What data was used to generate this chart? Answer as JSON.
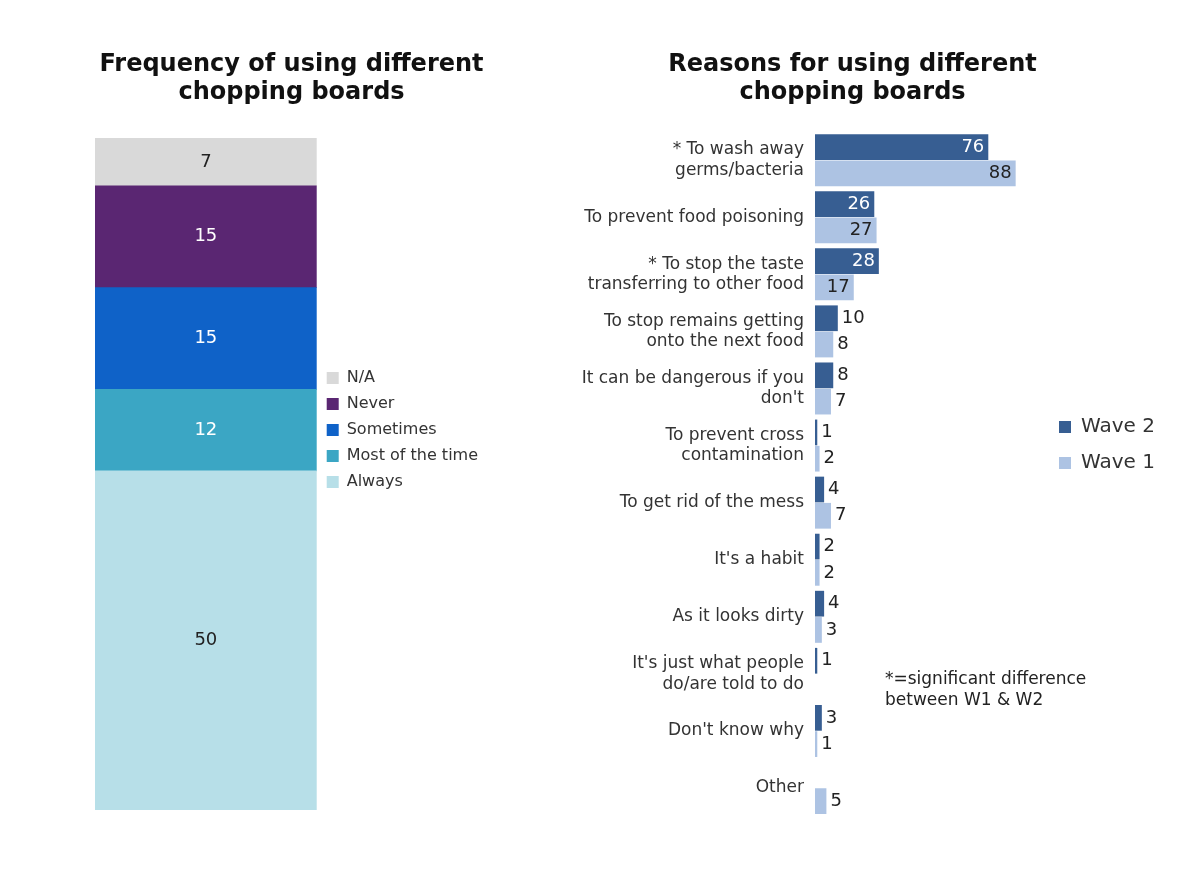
{
  "chart_data": [
    {
      "type": "bar",
      "title": "Frequency of using different chopping boards",
      "categories": [
        null
      ],
      "stacked": true,
      "data_labels": true,
      "tick_labels": false,
      "legend": "right",
      "series": [
        {
          "name": "Always",
          "color": "#b7dfe8",
          "values": [
            50
          ]
        },
        {
          "name": "Most of the time",
          "color": "#3ba6c4",
          "values": [
            12
          ]
        },
        {
          "name": "Sometimes",
          "color": "#0f62c8",
          "values": [
            15
          ]
        },
        {
          "name": "Never",
          "color": "#5a2672",
          "values": [
            15
          ]
        },
        {
          "name": "N/A",
          "color": "#d9d9d9",
          "values": [
            7
          ]
        }
      ]
    },
    {
      "type": "bar",
      "title": "Reasons for using different chopping boards",
      "orientation": "horizontal",
      "data_labels": true,
      "tick_labels": "y",
      "legend": "right",
      "categories": [
        "* To wash away germs/bacteria",
        "To prevent food poisoning",
        "* To stop the taste transferring to other food",
        "To stop remains getting onto the next food",
        "It can be dangerous if you don't",
        "To prevent cross contamination",
        "To get rid of the mess",
        "It's a habit",
        "As it looks dirty",
        "It's just what people do/are told to do",
        "Don't know why",
        "Other"
      ],
      "series": [
        {
          "name": "Wave 2",
          "color": "#375e92",
          "values": [
            76,
            26,
            28,
            10,
            8,
            1,
            4,
            2,
            4,
            1,
            3,
            null
          ]
        },
        {
          "name": "Wave 1",
          "color": "#adc3e3",
          "values": [
            88,
            27,
            17,
            8,
            7,
            2,
            7,
            2,
            3,
            null,
            1,
            5
          ]
        }
      ],
      "annotations": [
        "*=significant difference between W1 & W2"
      ]
    }
  ]
}
